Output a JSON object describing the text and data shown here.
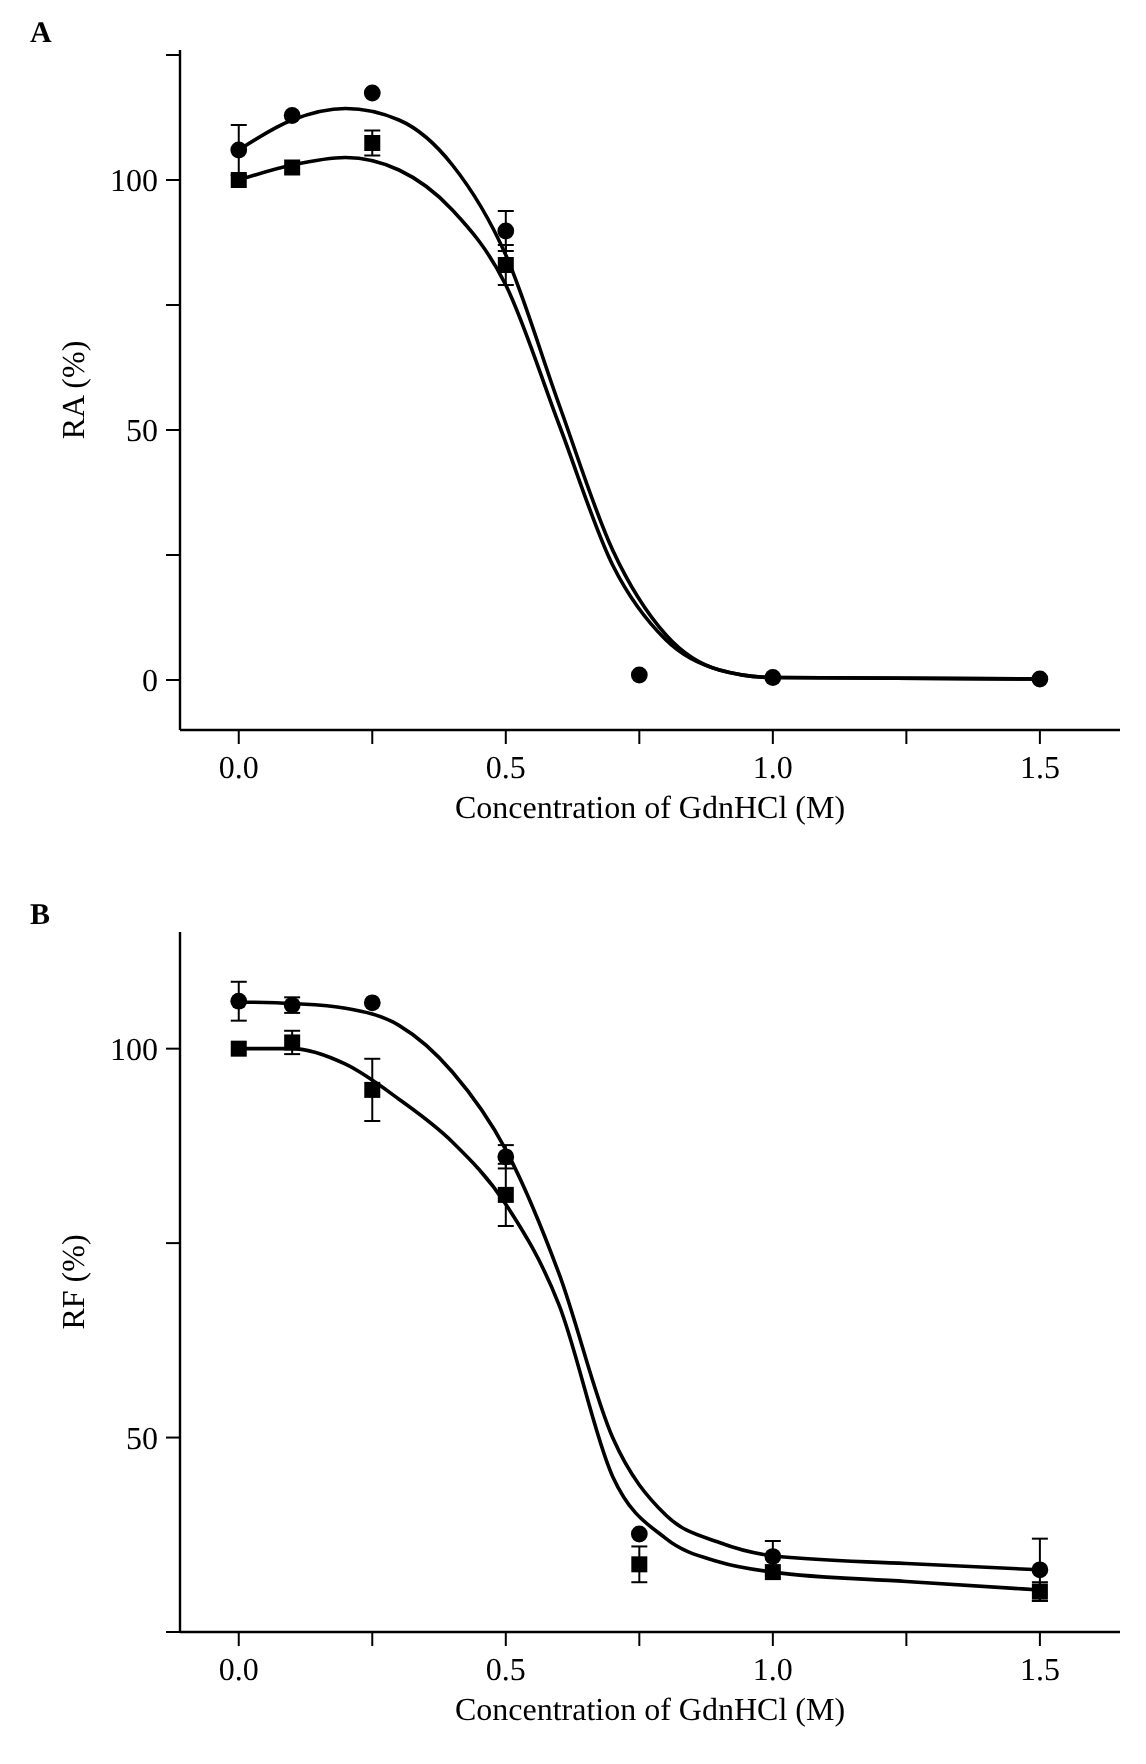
{
  "chart_data": [
    {
      "type": "scatter",
      "annotations": [
        "A"
      ],
      "xlabel": "Concentration of GdnHCl (M)",
      "ylabel": "RA (%)",
      "xlim": [
        -0.11,
        1.65
      ],
      "xticks": [
        {
          "value": 0,
          "label": "0.0"
        },
        {
          "value": 0.25,
          "label": null
        },
        {
          "value": 0.5,
          "label": "0.5"
        },
        {
          "value": 0.75,
          "label": null
        },
        {
          "value": 1,
          "label": "1.0"
        },
        {
          "value": 1.25,
          "label": null
        },
        {
          "value": 1.5,
          "label": "1.5"
        }
      ],
      "ylim": [
        -10,
        126
      ],
      "yticks": [
        0,
        {
          "value": 25,
          "label": null
        },
        50,
        {
          "value": 75,
          "label": null
        },
        100,
        {
          "value": 125,
          "label": null
        }
      ],
      "grid": false,
      "series": [
        {
          "marker": "circle",
          "color": "#000000",
          "x": [
            0,
            0.1,
            0.25,
            0.5,
            0.75,
            1.0,
            1.5
          ],
          "values": [
            106,
            112.9,
            117.4,
            89.8,
            1,
            0.5,
            0.2
          ],
          "errors": [
            5,
            null,
            null,
            4,
            null,
            null,
            null
          ]
        },
        {
          "marker": "square",
          "color": "#000000",
          "x": [
            0,
            0.1,
            0.25,
            0.5
          ],
          "values": [
            100,
            102.5,
            107.4,
            83
          ],
          "errors": [
            null,
            null,
            2.5,
            4
          ]
        },
        {
          "type": "line",
          "marker": "none",
          "line_style": "solid",
          "color": "#000000",
          "x": [
            0,
            0.1,
            0.2,
            0.3,
            0.4,
            0.5,
            0.6,
            0.7,
            0.8,
            0.9,
            1.0,
            1.5
          ],
          "values": [
            106,
            112,
            114.3,
            112,
            103,
            85,
            55,
            26,
            9,
            2,
            0.5,
            0.2
          ]
        },
        {
          "type": "line",
          "marker": "none",
          "line_style": "solid",
          "color": "#000000",
          "x": [
            0,
            0.1,
            0.2,
            0.3,
            0.4,
            0.5,
            0.6,
            0.7,
            0.8,
            0.9,
            1.0,
            1.5
          ],
          "values": [
            100,
            103,
            104.5,
            102,
            94,
            79,
            51,
            23,
            8,
            2,
            0.5,
            0.2
          ]
        }
      ]
    },
    {
      "type": "scatter",
      "annotations": [
        "B"
      ],
      "xlabel": "Concentration of GdnHCl (M)",
      "ylabel": "RF (%)",
      "xlim": [
        -0.11,
        1.65
      ],
      "xticks": [
        {
          "value": 0,
          "label": "0.0"
        },
        {
          "value": 0.25,
          "label": null
        },
        {
          "value": 0.5,
          "label": "0.5"
        },
        {
          "value": 0.75,
          "label": null
        },
        {
          "value": 1,
          "label": "1.0"
        },
        {
          "value": 1.25,
          "label": null
        },
        {
          "value": 1.5,
          "label": "1.5"
        }
      ],
      "ylim": [
        25,
        115
      ],
      "yticks": [
        {
          "value": 25,
          "label": null
        },
        50,
        {
          "value": 75,
          "label": null
        },
        100
      ],
      "grid": false,
      "series": [
        {
          "marker": "circle",
          "color": "#000000",
          "x": [
            0,
            0.1,
            0.25,
            0.5,
            0.75,
            1.0,
            1.5
          ],
          "values": [
            106.1,
            105.6,
            105.9,
            86.1,
            37.6,
            34.7,
            33
          ],
          "errors": [
            2.5,
            1,
            null,
            1.5,
            null,
            2,
            4
          ]
        },
        {
          "marker": "square",
          "color": "#000000",
          "x": [
            0,
            0.1,
            0.25,
            0.5,
            0.75,
            1.0,
            1.5
          ],
          "values": [
            100,
            100.8,
            94.7,
            81.2,
            33.7,
            32.7,
            30.2
          ],
          "errors": [
            null,
            1.5,
            4,
            4,
            2.3,
            null,
            1.2
          ]
        },
        {
          "type": "line",
          "marker": "none",
          "line_style": "solid",
          "color": "#000000",
          "x": [
            0,
            0.1,
            0.2,
            0.3,
            0.4,
            0.5,
            0.6,
            0.7,
            0.8,
            0.9,
            1.0,
            1.25,
            1.5
          ],
          "values": [
            106,
            105.8,
            105.2,
            103,
            97,
            87,
            71,
            50,
            40,
            36.5,
            34.8,
            33.8,
            33
          ]
        },
        {
          "type": "line",
          "marker": "none",
          "line_style": "solid",
          "color": "#000000",
          "x": [
            0,
            0.1,
            0.2,
            0.3,
            0.4,
            0.5,
            0.6,
            0.7,
            0.8,
            0.9,
            1.0,
            1.25,
            1.5
          ],
          "values": [
            100,
            100,
            98,
            93.5,
            88,
            80,
            67,
            45,
            37,
            34,
            32.7,
            31.5,
            30.4
          ]
        }
      ]
    }
  ]
}
